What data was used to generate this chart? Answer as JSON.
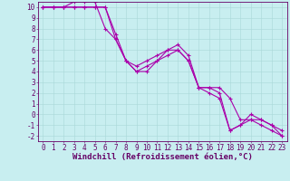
{
  "title": "",
  "xlabel": "Windchill (Refroidissement éolien,°C)",
  "ylabel": "",
  "bg_color": "#c8eef0",
  "grid_color": "#a8d8d8",
  "line_color": "#aa00aa",
  "marker": "+",
  "xlim": [
    -0.5,
    23.5
  ],
  "ylim": [
    -2.5,
    10.5
  ],
  "xticks": [
    0,
    1,
    2,
    3,
    4,
    5,
    6,
    7,
    8,
    9,
    10,
    11,
    12,
    13,
    14,
    15,
    16,
    17,
    18,
    19,
    20,
    21,
    22,
    23
  ],
  "yticks": [
    -2,
    -1,
    0,
    1,
    2,
    3,
    4,
    5,
    6,
    7,
    8,
    9,
    10
  ],
  "lines": [
    {
      "x": [
        0,
        1,
        2,
        3,
        4,
        5,
        6,
        7,
        8,
        9,
        10,
        11,
        12,
        13,
        14,
        15,
        16,
        17,
        18,
        19,
        20,
        21,
        22,
        23
      ],
      "y": [
        10,
        10,
        10,
        10,
        10,
        10,
        10,
        7.5,
        5,
        4,
        4.5,
        5,
        6,
        6.5,
        5.5,
        2.5,
        2.5,
        2.5,
        1.5,
        -0.5,
        -0.5,
        -1,
        -1.5,
        -2
      ]
    },
    {
      "x": [
        0,
        1,
        2,
        3,
        4,
        5,
        6,
        7,
        8,
        9,
        10,
        11,
        12,
        13,
        14,
        15,
        16,
        17,
        18,
        19,
        20,
        21,
        22,
        23
      ],
      "y": [
        10,
        10,
        10,
        10,
        10,
        10,
        10,
        7,
        5,
        4.5,
        5,
        5.5,
        6,
        6,
        5,
        2.5,
        2.5,
        2,
        -1.5,
        -1,
        -0.5,
        -0.5,
        -1,
        -1.5
      ]
    },
    {
      "x": [
        0,
        1,
        2,
        3,
        4,
        5,
        6,
        7,
        8,
        9,
        10,
        11,
        12,
        13,
        14,
        15,
        16,
        17,
        18,
        19,
        20,
        21,
        22,
        23
      ],
      "y": [
        10,
        10,
        10,
        10.5,
        10.5,
        10.5,
        8,
        7,
        5,
        4,
        4,
        5,
        5.5,
        6,
        5,
        2.5,
        2,
        1.5,
        -1.5,
        -1,
        0,
        -0.5,
        -1,
        -2
      ]
    }
  ],
  "xlabel_fontsize": 6.5,
  "tick_fontsize": 5.5,
  "linewidth": 0.8,
  "markersize": 3.5,
  "markeredgewidth": 0.8
}
